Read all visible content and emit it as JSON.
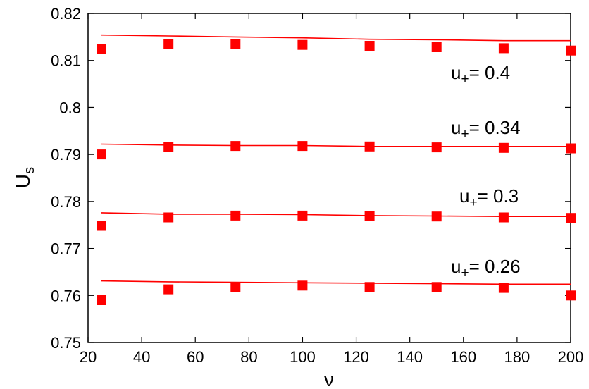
{
  "chart_data": {
    "type": "scatter",
    "xlabel": "ν",
    "ylabel": "U",
    "ylabel_sub": "s",
    "xlim": [
      20,
      200
    ],
    "ylim": [
      0.75,
      0.82
    ],
    "x_ticks": [
      20,
      40,
      60,
      80,
      100,
      120,
      140,
      160,
      180,
      200
    ],
    "y_ticks": [
      0.75,
      0.76,
      0.77,
      0.78,
      0.79,
      0.8,
      0.81,
      0.82
    ],
    "y_tick_labels": [
      "0.75",
      "0.76",
      "0.77",
      "0.78",
      "0.79",
      "0.8",
      "0.81",
      "0.82"
    ],
    "grid": false,
    "marker_color": "#ff0000",
    "line_color": "#ff0000",
    "series": [
      {
        "label_base": "u",
        "label_sub": "+",
        "label_value": "= 0.4",
        "points_x": [
          25,
          50,
          75,
          100,
          125,
          150,
          175,
          200
        ],
        "points_y": [
          0.8125,
          0.8135,
          0.8135,
          0.8133,
          0.8131,
          0.8128,
          0.8126,
          0.8121
        ],
        "line_x": [
          25,
          50,
          75,
          100,
          125,
          150,
          175,
          200
        ],
        "line_y": [
          0.8154,
          0.8152,
          0.815,
          0.8148,
          0.8145,
          0.8144,
          0.8142,
          0.8142
        ]
      },
      {
        "label_base": "u",
        "label_sub": "+",
        "label_value": "= 0.34",
        "points_x": [
          25,
          50,
          75,
          100,
          125,
          150,
          175,
          200
        ],
        "points_y": [
          0.79,
          0.7916,
          0.7918,
          0.7918,
          0.7917,
          0.7915,
          0.7914,
          0.7913
        ],
        "line_x": [
          25,
          50,
          75,
          100,
          125,
          150,
          175,
          200
        ],
        "line_y": [
          0.7922,
          0.792,
          0.7919,
          0.7919,
          0.7917,
          0.7917,
          0.7917,
          0.7917
        ]
      },
      {
        "label_base": "u",
        "label_sub": "+",
        "label_value": "= 0.3",
        "points_x": [
          25,
          50,
          75,
          100,
          125,
          150,
          175,
          200
        ],
        "points_y": [
          0.7748,
          0.7766,
          0.777,
          0.777,
          0.7769,
          0.7768,
          0.7766,
          0.7765
        ],
        "line_x": [
          25,
          50,
          75,
          100,
          125,
          150,
          175,
          200
        ],
        "line_y": [
          0.7776,
          0.7773,
          0.7773,
          0.7772,
          0.777,
          0.7769,
          0.7768,
          0.7768
        ]
      },
      {
        "label_base": "u",
        "label_sub": "+",
        "label_value": "= 0.26",
        "points_x": [
          25,
          50,
          75,
          100,
          125,
          150,
          175,
          200
        ],
        "points_y": [
          0.759,
          0.7613,
          0.7618,
          0.7621,
          0.7618,
          0.7618,
          0.7616,
          0.76
        ],
        "line_x": [
          25,
          50,
          75,
          100,
          125,
          150,
          175,
          200
        ],
        "line_y": [
          0.7631,
          0.7629,
          0.7628,
          0.7627,
          0.7626,
          0.7625,
          0.7624,
          0.7624
        ]
      }
    ]
  }
}
